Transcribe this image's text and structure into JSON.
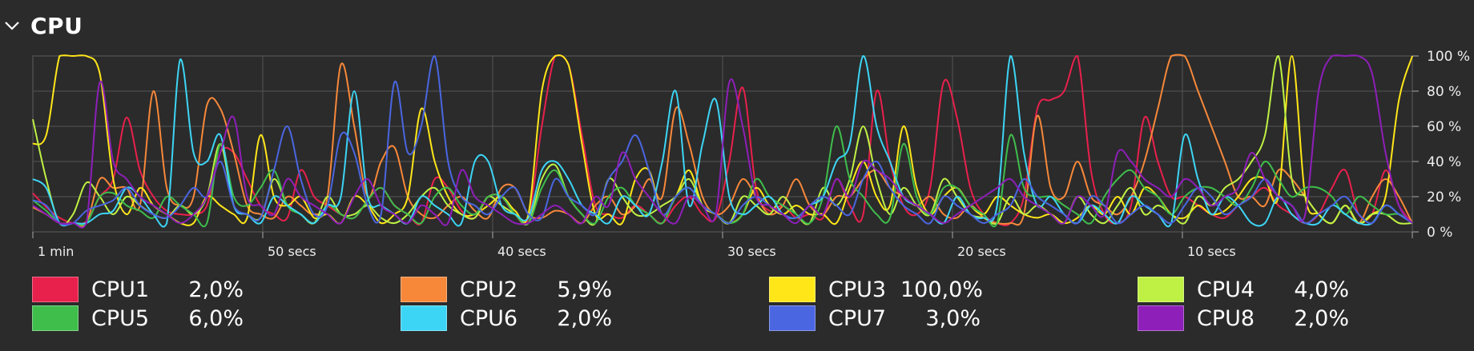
{
  "section": {
    "title": "CPU",
    "toggle_icon": "chevron-down-icon"
  },
  "colors": {
    "background": "#2b2b2b",
    "grid": "#555555",
    "axis_text": "#eeeeee"
  },
  "chart_data": {
    "type": "line",
    "x_unit": "seconds ago",
    "xlim": [
      60,
      0
    ],
    "ylim": [
      0,
      100
    ],
    "x_ticks": [
      {
        "value": 60,
        "label": "1 min"
      },
      {
        "value": 50,
        "label": "50 secs"
      },
      {
        "value": 40,
        "label": "40 secs"
      },
      {
        "value": 30,
        "label": "30 secs"
      },
      {
        "value": 20,
        "label": "20 secs"
      },
      {
        "value": 10,
        "label": "10 secs"
      }
    ],
    "y_ticks": [
      {
        "value": 100,
        "label": "100 %"
      },
      {
        "value": 80,
        "label": "80 %"
      },
      {
        "value": 60,
        "label": "60 %"
      },
      {
        "value": 40,
        "label": "40 %"
      },
      {
        "value": 20,
        "label": "20 %"
      },
      {
        "value": 0,
        "label": "0 %"
      }
    ],
    "series": [
      {
        "name": "CPU1",
        "current": "2,0%",
        "color": "#e8204c",
        "values": [
          22,
          14,
          8,
          5,
          6,
          20,
          30,
          65,
          35,
          20,
          12,
          10,
          10,
          15,
          45,
          45,
          30,
          15,
          10,
          8,
          35,
          20,
          15,
          10,
          8,
          18,
          25,
          15,
          10,
          5,
          30,
          25,
          12,
          8,
          20,
          20,
          10,
          8,
          60,
          100,
          95,
          55,
          15,
          10,
          8,
          15,
          10,
          5,
          15,
          20,
          10,
          8,
          40,
          82,
          25,
          12,
          15,
          8,
          10,
          8,
          30,
          15,
          10,
          80,
          40,
          15,
          10,
          25,
          85,
          65,
          25,
          10,
          5,
          5,
          20,
          70,
          75,
          80,
          100,
          35,
          10,
          5,
          15,
          65,
          40,
          20,
          20,
          15,
          10,
          8,
          15,
          20,
          25,
          15,
          10,
          5,
          10,
          25,
          35,
          10,
          10,
          35,
          15,
          5
        ]
      },
      {
        "name": "CPU2",
        "current": "5,9%",
        "color": "#f7883a",
        "values": [
          14,
          10,
          5,
          5,
          5,
          30,
          25,
          25,
          15,
          80,
          25,
          15,
          20,
          72,
          70,
          45,
          15,
          10,
          8,
          20,
          15,
          10,
          20,
          95,
          60,
          20,
          40,
          48,
          20,
          10,
          8,
          15,
          20,
          12,
          8,
          25,
          25,
          10,
          8,
          12,
          10,
          5,
          15,
          20,
          10,
          15,
          30,
          20,
          70,
          50,
          20,
          10,
          15,
          30,
          20,
          10,
          15,
          30,
          15,
          10,
          20,
          20,
          30,
          35,
          25,
          20,
          15,
          20,
          10,
          8,
          15,
          8,
          5,
          5,
          10,
          66,
          25,
          20,
          40,
          20,
          15,
          10,
          20,
          40,
          70,
          100,
          100,
          80,
          60,
          40,
          20,
          20,
          15,
          35,
          30,
          20,
          10,
          5,
          15,
          5,
          20,
          30,
          20,
          5
        ]
      },
      {
        "name": "CPU3",
        "current": "100,0%",
        "color": "#ffe619",
        "values": [
          50,
          55,
          100,
          100,
          100,
          90,
          30,
          10,
          25,
          15,
          10,
          5,
          5,
          20,
          15,
          10,
          8,
          55,
          20,
          15,
          20,
          8,
          10,
          5,
          20,
          15,
          5,
          10,
          20,
          70,
          40,
          20,
          10,
          10,
          15,
          20,
          12,
          10,
          80,
          100,
          95,
          50,
          10,
          10,
          5,
          30,
          35,
          10,
          20,
          35,
          15,
          10,
          5,
          10,
          25,
          15,
          10,
          15,
          10,
          10,
          5,
          25,
          40,
          20,
          15,
          60,
          25,
          10,
          20,
          25,
          15,
          10,
          20,
          15,
          10,
          8,
          10,
          5,
          8,
          15,
          10,
          20,
          10,
          25,
          20,
          10,
          8,
          15,
          10,
          12,
          20,
          30,
          30,
          20,
          100,
          20,
          10,
          5,
          15,
          5,
          10,
          20,
          75,
          100
        ]
      },
      {
        "name": "CPU4",
        "current": "4,0%",
        "color": "#bff144",
        "values": [
          64,
          30,
          5,
          10,
          28,
          20,
          10,
          20,
          15,
          10,
          8,
          15,
          10,
          20,
          50,
          15,
          10,
          8,
          30,
          15,
          10,
          5,
          20,
          10,
          10,
          15,
          8,
          5,
          10,
          20,
          25,
          15,
          10,
          8,
          20,
          15,
          10,
          5,
          30,
          38,
          20,
          10,
          5,
          30,
          20,
          10,
          10,
          15,
          20,
          30,
          15,
          10,
          5,
          20,
          15,
          10,
          20,
          10,
          5,
          25,
          15,
          30,
          60,
          30,
          10,
          25,
          15,
          10,
          30,
          20,
          10,
          8,
          5,
          20,
          10,
          15,
          10,
          5,
          20,
          10,
          5,
          15,
          25,
          10,
          15,
          10,
          5,
          20,
          15,
          25,
          30,
          40,
          55,
          100,
          30,
          20,
          10,
          5,
          15,
          5,
          10,
          10,
          5,
          5
        ]
      },
      {
        "name": "CPU5",
        "current": "6,0%",
        "color": "#3fbe4c",
        "values": [
          18,
          12,
          5,
          5,
          5,
          20,
          22,
          15,
          12,
          8,
          20,
          15,
          10,
          5,
          50,
          20,
          15,
          25,
          35,
          15,
          10,
          5,
          15,
          10,
          8,
          18,
          25,
          15,
          10,
          5,
          20,
          25,
          15,
          10,
          20,
          20,
          10,
          5,
          25,
          35,
          20,
          10,
          5,
          20,
          25,
          15,
          10,
          5,
          20,
          25,
          15,
          10,
          5,
          10,
          30,
          20,
          15,
          10,
          5,
          20,
          60,
          30,
          20,
          10,
          8,
          50,
          20,
          10,
          25,
          25,
          15,
          10,
          5,
          55,
          25,
          20,
          20,
          15,
          10,
          5,
          20,
          30,
          35,
          25,
          20,
          10,
          20,
          25,
          25,
          20,
          15,
          25,
          40,
          30,
          20,
          25,
          25,
          20,
          10,
          20,
          15,
          10,
          10,
          5
        ]
      },
      {
        "name": "CPU6",
        "current": "2,0%",
        "color": "#3dd5f5",
        "values": [
          30,
          25,
          5,
          5,
          5,
          10,
          12,
          25,
          20,
          10,
          5,
          98,
          45,
          40,
          55,
          15,
          10,
          5,
          20,
          15,
          10,
          5,
          15,
          20,
          80,
          20,
          15,
          10,
          5,
          20,
          15,
          10,
          5,
          40,
          40,
          15,
          10,
          8,
          35,
          40,
          30,
          15,
          10,
          5,
          20,
          15,
          10,
          40,
          80,
          15,
          50,
          75,
          20,
          10,
          15,
          20,
          10,
          8,
          15,
          20,
          40,
          50,
          100,
          60,
          40,
          20,
          15,
          10,
          5,
          20,
          10,
          8,
          15,
          100,
          45,
          15,
          20,
          10,
          5,
          15,
          10,
          5,
          20,
          15,
          10,
          5,
          55,
          30,
          10,
          20,
          15,
          5,
          5,
          20,
          10,
          5,
          5,
          15,
          10,
          5,
          5,
          15,
          10,
          5
        ]
      },
      {
        "name": "CPU7",
        "current": "3,0%",
        "color": "#4a66e0",
        "values": [
          18,
          15,
          5,
          5,
          12,
          15,
          18,
          25,
          15,
          10,
          8,
          15,
          25,
          20,
          40,
          15,
          10,
          8,
          35,
          60,
          30,
          10,
          15,
          55,
          45,
          15,
          10,
          85,
          45,
          60,
          100,
          40,
          20,
          15,
          10,
          20,
          25,
          10,
          8,
          30,
          20,
          15,
          10,
          30,
          40,
          55,
          35,
          10,
          20,
          25,
          15,
          10,
          5,
          15,
          20,
          15,
          10,
          8,
          15,
          20,
          15,
          10,
          30,
          40,
          25,
          15,
          10,
          5,
          20,
          15,
          10,
          5,
          10,
          15,
          30,
          20,
          15,
          10,
          5,
          20,
          15,
          5,
          10,
          15,
          10,
          5,
          15,
          25,
          20,
          10,
          15,
          20,
          30,
          20,
          15,
          5,
          10,
          15,
          20,
          10,
          5,
          15,
          10,
          5
        ]
      },
      {
        "name": "CPU8",
        "current": "2,0%",
        "color": "#8e1fb8",
        "values": [
          15,
          10,
          5,
          5,
          5,
          85,
          40,
          30,
          20,
          15,
          10,
          5,
          10,
          20,
          45,
          65,
          20,
          15,
          10,
          30,
          20,
          15,
          10,
          5,
          20,
          30,
          15,
          10,
          5,
          15,
          10,
          5,
          35,
          20,
          15,
          10,
          5,
          5,
          10,
          15,
          10,
          5,
          20,
          15,
          45,
          30,
          20,
          10,
          5,
          20,
          15,
          10,
          85,
          60,
          20,
          15,
          10,
          5,
          15,
          10,
          30,
          20,
          40,
          35,
          30,
          20,
          15,
          10,
          5,
          10,
          15,
          20,
          25,
          30,
          20,
          15,
          10,
          5,
          20,
          15,
          10,
          45,
          40,
          30,
          25,
          20,
          30,
          25,
          15,
          20,
          25,
          45,
          30,
          20,
          15,
          10,
          80,
          100,
          100,
          100,
          90,
          45,
          15,
          5
        ]
      }
    ]
  }
}
